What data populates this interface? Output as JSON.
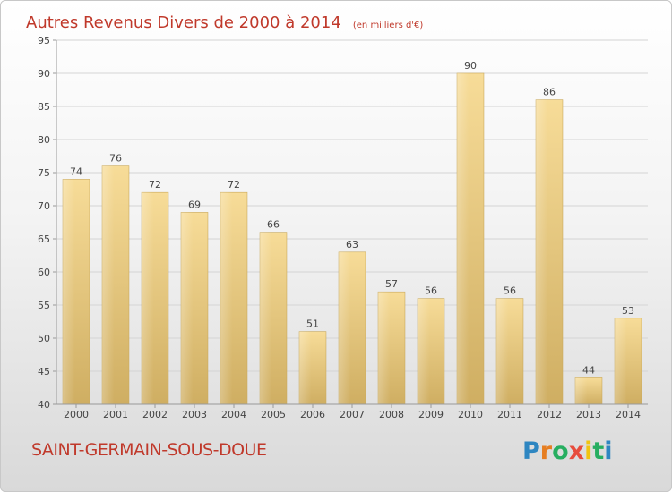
{
  "chart_data": {
    "type": "bar",
    "title": "Autres Revenus Divers de 2000 à 2014",
    "subtitle": "(en milliers d'€)",
    "categories": [
      "2000",
      "2001",
      "2002",
      "2003",
      "2004",
      "2005",
      "2006",
      "2007",
      "2008",
      "2009",
      "2010",
      "2011",
      "2012",
      "2013",
      "2014"
    ],
    "values": [
      74,
      76,
      72,
      69,
      72,
      66,
      51,
      63,
      57,
      56,
      90,
      56,
      86,
      44,
      53
    ],
    "ylim": [
      40,
      95
    ],
    "yticks": [
      40,
      45,
      50,
      55,
      60,
      65,
      70,
      75,
      80,
      85,
      90,
      95
    ],
    "grid": true,
    "bar_color": "#e6c878",
    "title_color": "#c0392b"
  },
  "footer": {
    "commune": "SAINT-GERMAIN-SOUS-DOUE",
    "logo_letters": [
      "P",
      "r",
      "o",
      "x",
      "i",
      "t",
      "i"
    ],
    "logo_colors": [
      "#2e86c1",
      "#e67e22",
      "#27ae60",
      "#e74c3c",
      "#f1c40f",
      "#27ae60",
      "#2e86c1"
    ]
  }
}
